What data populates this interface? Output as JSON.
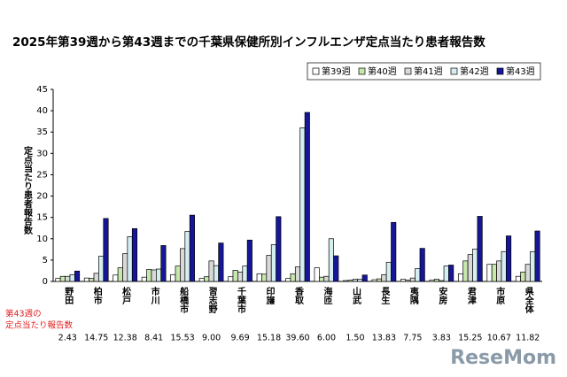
{
  "chart_data": {
    "type": "bar",
    "title": "2025年第39週から第43週までの千葉県保健所別インフルエンザ定点当たり患者報告数",
    "ylabel": "定点当たり患者報告数",
    "categories": [
      "野田",
      "柏市",
      "松戸",
      "市川",
      "船橋市",
      "習志野",
      "千葉市",
      "印旛",
      "香取",
      "海匝",
      "山武",
      "長生",
      "夷隅",
      "安房",
      "君津",
      "市原",
      "県全体"
    ],
    "series": [
      {
        "name": "第39週",
        "color": "#ffffff",
        "values": [
          0.7,
          0.8,
          1.5,
          1.0,
          1.6,
          0.7,
          1.1,
          1.8,
          0.7,
          3.2,
          0.2,
          0.4,
          0.5,
          0.3,
          1.8,
          4.0,
          1.2
        ]
      },
      {
        "name": "第40週",
        "color": "#c6e7ad",
        "values": [
          1.2,
          0.7,
          3.2,
          2.8,
          3.6,
          1.1,
          2.6,
          1.7,
          1.8,
          1.0,
          0.3,
          0.6,
          0.3,
          0.5,
          4.8,
          4.0,
          2.2
        ]
      },
      {
        "name": "第41週",
        "color": "#d9d9d9",
        "values": [
          1.2,
          1.9,
          6.5,
          2.7,
          7.7,
          4.8,
          2.2,
          6.1,
          3.4,
          1.2,
          0.5,
          1.6,
          0.8,
          0.2,
          6.3,
          4.8,
          4.0
        ]
      },
      {
        "name": "第42週",
        "color": "#d5eef0",
        "values": [
          1.6,
          5.9,
          10.5,
          2.9,
          11.7,
          3.7,
          3.6,
          8.6,
          36.0,
          10.0,
          0.5,
          4.5,
          3.0,
          3.6,
          7.6,
          7.0,
          7.0
        ]
      },
      {
        "name": "第43週",
        "color": "#16169a",
        "values": [
          2.43,
          14.75,
          12.38,
          8.41,
          15.53,
          9.0,
          9.69,
          15.18,
          39.6,
          6.0,
          1.5,
          13.83,
          7.75,
          3.83,
          15.25,
          10.67,
          11.82
        ],
        "value_labels": [
          "2.43",
          "14.75",
          "12.38",
          "8.41",
          "15.53",
          "9.00",
          "9.69",
          "15.18",
          "39.60",
          "6.00",
          "1.50",
          "13.83",
          "7.75",
          "3.83",
          "15.25",
          "10.67",
          "11.82"
        ]
      }
    ],
    "note": [
      "第43週の",
      "定点当たり報告数"
    ],
    "ylim": [
      0,
      45
    ],
    "yticks": [
      0,
      5,
      10,
      15,
      20,
      25,
      30,
      35,
      40,
      45
    ],
    "legend": "top-right",
    "watermark": "ReseMom"
  }
}
